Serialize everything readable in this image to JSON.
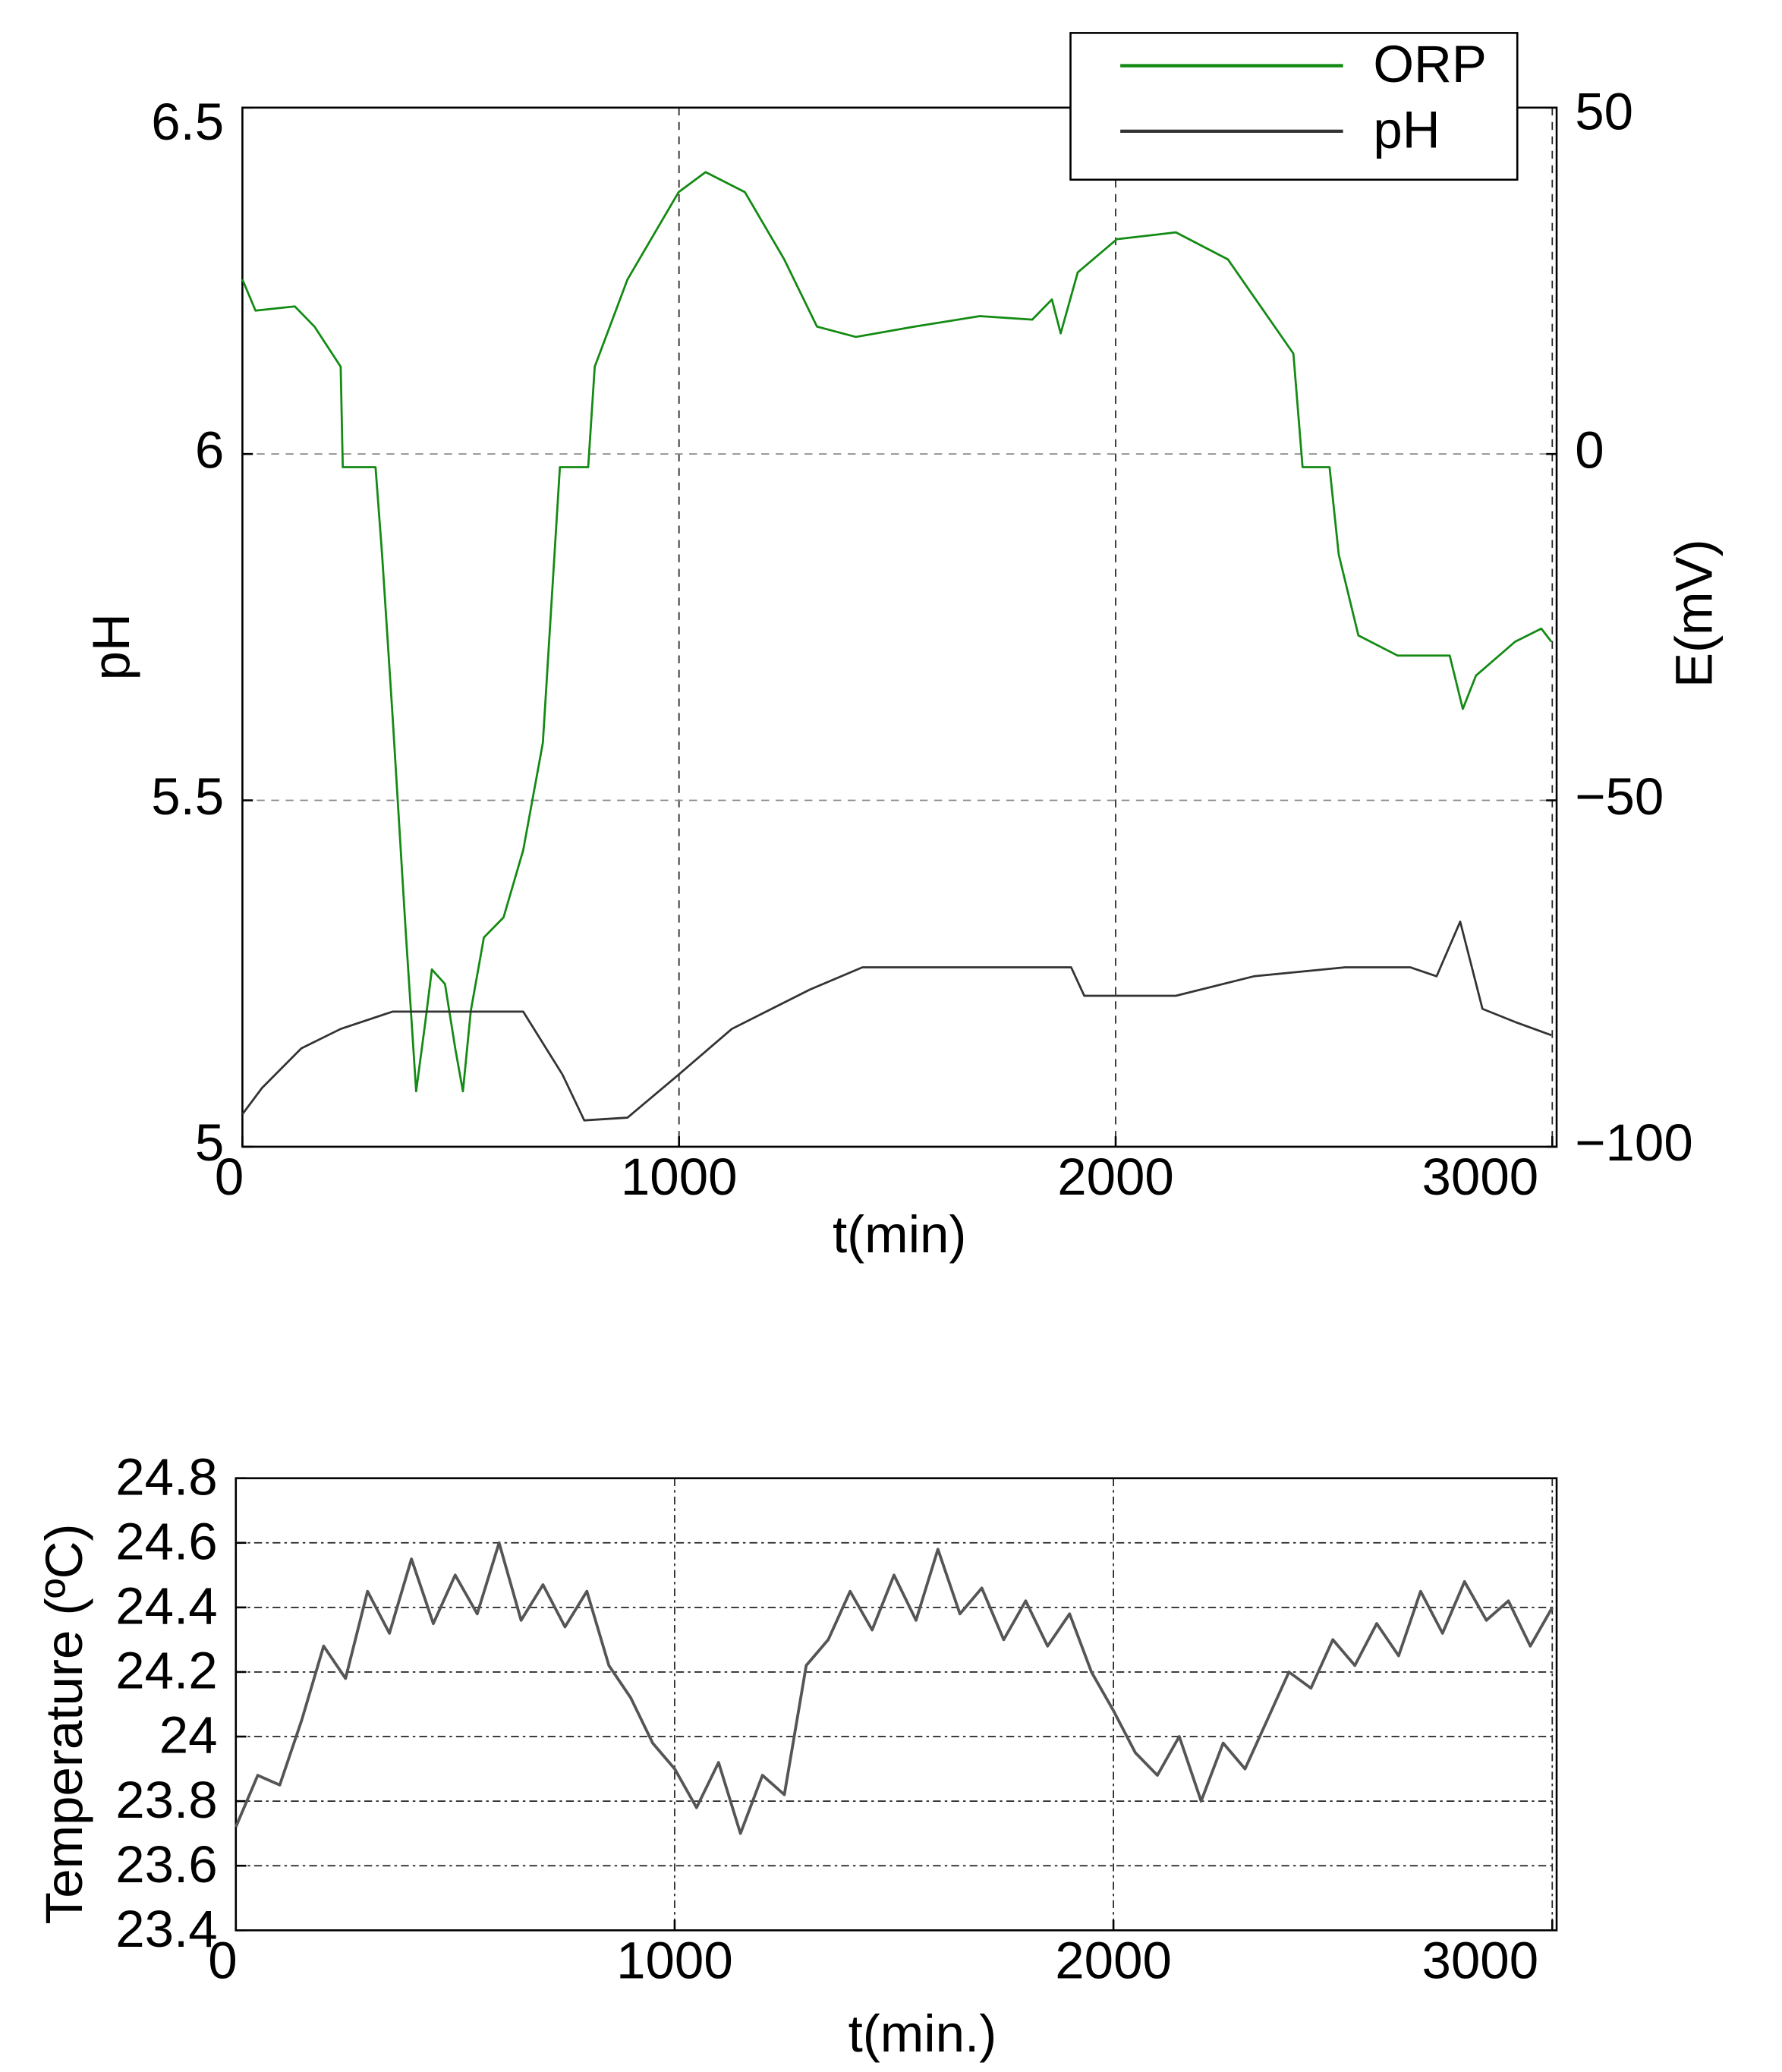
{
  "chart_data": [
    {
      "type": "line",
      "xlabel": "t(min)",
      "ylabel": "pH",
      "y2label": "E(mV)",
      "xlim": [
        0,
        3010
      ],
      "xticks": [
        0,
        1000,
        2000,
        3000
      ],
      "ylim": [
        5,
        6.5
      ],
      "yticks": [
        5,
        5.5,
        6,
        6.5
      ],
      "y2lim": [
        -100,
        50
      ],
      "y2ticks": [
        {
          "value": -100,
          "label": "−100"
        },
        {
          "value": -50,
          "label": "−50"
        },
        0,
        50
      ],
      "grid": true,
      "grid_style": "dashed",
      "legend": "upper right",
      "y2color": "#138a13",
      "series": [
        {
          "name": "ORP",
          "color": "#138a13",
          "axis": "y2",
          "x": [
            0,
            30,
            120,
            165,
            225,
            230,
            305,
            320,
            344,
            374,
            398,
            419,
            434,
            464,
            488,
            505,
            523,
            553,
            598,
            643,
            688,
            727,
            792,
            807,
            882,
            999,
            1061,
            1151,
            1241,
            1316,
            1405,
            1540,
            1689,
            1809,
            1854,
            1874,
            1913,
            2003,
            2138,
            2257,
            2407,
            2428,
            2490,
            2511,
            2556,
            2646,
            2765,
            2795,
            2825,
            2915,
            2975,
            2998
          ],
          "values": [
            25.2,
            20.7,
            21.3,
            18.4,
            12.6,
            -1.9,
            -1.9,
            -14.5,
            -37.8,
            -68.8,
            -92,
            -82,
            -74.4,
            -76.5,
            -86,
            -92,
            -80.4,
            -69.8,
            -66.9,
            -57.2,
            -41.7,
            -1.9,
            -1.9,
            12.6,
            25.2,
            37.8,
            40.7,
            37.8,
            28.1,
            18.4,
            16.9,
            18.4,
            19.9,
            19.4,
            22.3,
            17.4,
            26.2,
            31,
            32,
            28.1,
            14.5,
            -1.9,
            -1.9,
            -14.5,
            -26.2,
            -29.1,
            -29.1,
            -36.8,
            -32,
            -27.1,
            -25.2,
            -27.1
          ]
        },
        {
          "name": "pH",
          "color": "#333333",
          "axis": "y",
          "x": [
            0,
            45,
            135,
            225,
            344,
            643,
            733,
            783,
            882,
            999,
            1121,
            1300,
            1420,
            1898,
            1928,
            2138,
            2317,
            2526,
            2675,
            2735,
            2789,
            2840,
            2915,
            2998
          ],
          "values": [
            5.047,
            5.085,
            5.142,
            5.17,
            5.195,
            5.195,
            5.104,
            5.038,
            5.042,
            5.104,
            5.17,
            5.227,
            5.259,
            5.259,
            5.218,
            5.218,
            5.246,
            5.259,
            5.259,
            5.246,
            5.325,
            5.199,
            5.18,
            5.161
          ]
        }
      ]
    },
    {
      "type": "line",
      "xlabel": "t(min.)",
      "ylabel": "Temperature (ºC)",
      "xlim": [
        0,
        3010
      ],
      "xticks": [
        0,
        1000,
        2000,
        3000
      ],
      "ylim": [
        23.4,
        24.8
      ],
      "yticks": [
        23.4,
        23.6,
        23.8,
        24,
        24.2,
        24.4,
        24.6,
        24.8
      ],
      "grid": true,
      "grid_style": "dashdot",
      "series": [
        {
          "color": "#555555",
          "x": [
            0,
            50,
            100,
            150,
            200,
            250,
            300,
            350,
            400,
            450,
            500,
            550,
            600,
            650,
            700,
            750,
            800,
            850,
            900,
            950,
            1000,
            1050,
            1100,
            1150,
            1200,
            1250,
            1300,
            1350,
            1400,
            1450,
            1500,
            1550,
            1600,
            1650,
            1700,
            1750,
            1800,
            1850,
            1900,
            1950,
            2000,
            2050,
            2100,
            2150,
            2200,
            2250,
            2300,
            2350,
            2400,
            2450,
            2500,
            2550,
            2600,
            2650,
            2700,
            2750,
            2800,
            2850,
            2900,
            2950,
            3000
          ],
          "values": [
            23.72,
            23.88,
            23.85,
            24.05,
            24.28,
            24.18,
            24.45,
            24.32,
            24.55,
            24.35,
            24.5,
            24.38,
            24.6,
            24.36,
            24.47,
            24.34,
            24.45,
            24.22,
            24.12,
            23.98,
            23.9,
            23.78,
            23.92,
            23.7,
            23.88,
            23.82,
            24.22,
            24.3,
            24.45,
            24.33,
            24.5,
            24.36,
            24.58,
            24.38,
            24.46,
            24.3,
            24.42,
            24.28,
            24.38,
            24.2,
            24.08,
            23.95,
            23.88,
            24,
            23.8,
            23.98,
            23.9,
            24.05,
            24.2,
            24.15,
            24.3,
            24.22,
            24.35,
            24.25,
            24.45,
            24.32,
            24.48,
            24.36,
            24.42,
            24.28,
            24.4
          ]
        }
      ]
    }
  ]
}
